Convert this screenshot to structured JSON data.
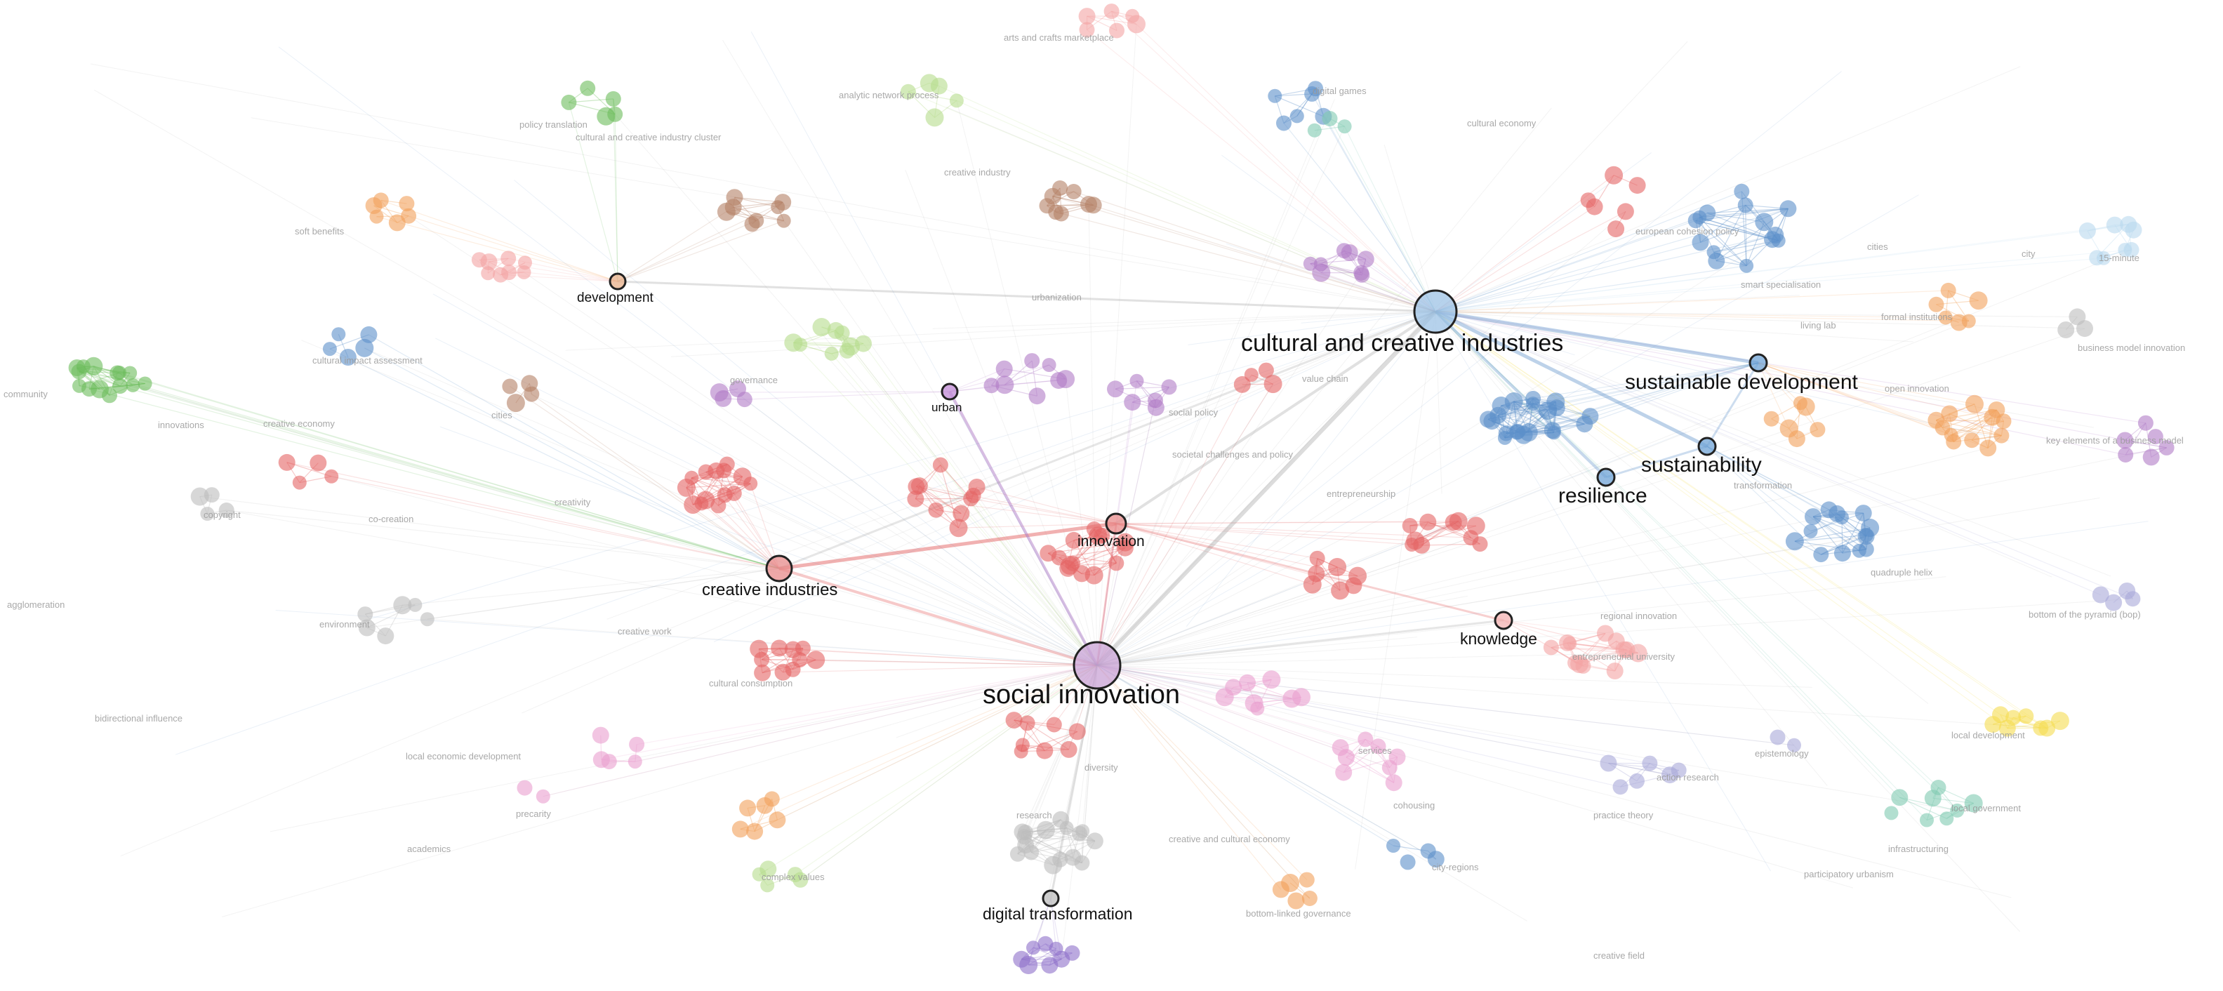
{
  "hubs": [
    {
      "label": "cultural and creative industries",
      "color": "#9ec3e6"
    },
    {
      "label": "social innovation",
      "color": "#c9a3d6"
    },
    {
      "label": "creative industries",
      "color": "#e88b8b"
    },
    {
      "label": "innovation",
      "color": "#e88b8b"
    },
    {
      "label": "sustainable development",
      "color": "#6fa3d6"
    },
    {
      "label": "sustainability",
      "color": "#6fa3d6"
    },
    {
      "label": "resilience",
      "color": "#6fa3d6"
    },
    {
      "label": "knowledge",
      "color": "#f4b3b3"
    },
    {
      "label": "development",
      "color": "#e8b08a"
    },
    {
      "label": "urban",
      "color": "#c08ad6"
    },
    {
      "label": "digital transformation",
      "color": "#bdbdbd"
    }
  ],
  "faint_labels": [
    "arts and crafts marketplace",
    "policy translation",
    "cultural and creative industry cluster",
    "analytic network process",
    "creative industry",
    "digital games",
    "cultural economy",
    "soft benefits",
    "community",
    "innovations",
    "creative economy",
    "cultural impact assessment",
    "governance",
    "cities",
    "copyright",
    "creativity",
    "co-creation",
    "agglomeration",
    "environment",
    "creative work",
    "cultural consumption",
    "bidirectional influence",
    "local economic development",
    "precarity",
    "academics",
    "complex values",
    "research",
    "creative and cultural economy",
    "bottom-linked governance",
    "creative field",
    "city-regions",
    "cohousing",
    "services",
    "diversity",
    "value chain",
    "social policy",
    "societal challenges and policy",
    "entrepreneurship",
    "regional innovation",
    "entrepreneurial university",
    "action research",
    "practice theory",
    "epistemology",
    "participatory urbanism",
    "infrastructuring",
    "local government",
    "local development",
    "bottom of the pyramid (bop)",
    "quadruple helix",
    "key elements of a business model",
    "business model innovation",
    "open innovation",
    "formal institutions",
    "city",
    "15-minute",
    "cities",
    "european cohesion policy",
    "smart specialisation",
    "living lab",
    "transformation",
    "urbanization"
  ],
  "colors": {
    "red": "#e46464",
    "blue": "#5b8fc9",
    "purple": "#b07cc6",
    "gray": "#bdbdbd",
    "brown": "#b48166",
    "orange": "#f2a05a",
    "green": "#6cbd5c",
    "lightgreen": "#b6dc8c",
    "pink": "#ea9fce",
    "lightblue": "#b9d9ef",
    "yellow": "#f5dc50",
    "teal": "#7ec9b0",
    "lavender": "#a9a9d8",
    "salmon": "#f4a3a3",
    "violet": "#8d6fc9"
  }
}
